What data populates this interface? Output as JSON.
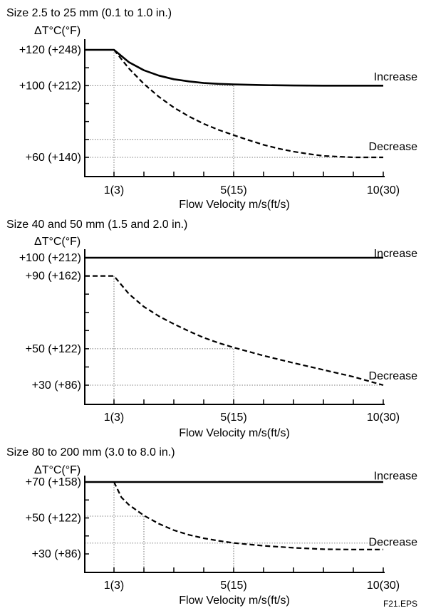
{
  "figure_id": "F21.EPS",
  "chart_data": [
    {
      "type": "line",
      "title": "Size 2.5 to 25 mm (0.1 to 1.0 in.)",
      "ylabel": "ΔT°C(°F)",
      "xlabel": "Flow Velocity m/s(ft/s)",
      "x_ticks": [
        {
          "v": 1,
          "label": "1(3)"
        },
        {
          "v": 5,
          "label": "5(15)"
        },
        {
          "v": 10,
          "label": "10(30)"
        }
      ],
      "y_ticks": [
        {
          "v": 120,
          "label": "+120 (+248)"
        },
        {
          "v": 100,
          "label": "+100 (+212)"
        },
        {
          "v": 60,
          "label": "+60 (+140)"
        }
      ],
      "xlim": [
        0,
        10.5
      ],
      "ylim": [
        50,
        121
      ],
      "series": [
        {
          "name": "Increase",
          "style": "solid",
          "x": [
            0,
            1,
            1.5,
            2,
            2.5,
            3,
            3.5,
            4,
            4.5,
            5,
            6,
            7,
            8,
            9,
            10
          ],
          "y": [
            120,
            120,
            113.1,
            108.6,
            105.6,
            103.6,
            102.4,
            101.5,
            101,
            100.7,
            100.3,
            100.1,
            100,
            100,
            100
          ]
        },
        {
          "name": "Decrease",
          "style": "dashed",
          "x": [
            1,
            1.5,
            2,
            2.5,
            3,
            3.5,
            4,
            4.5,
            5,
            5.5,
            6,
            6.5,
            7,
            7.5,
            8,
            9,
            10
          ],
          "y": [
            120,
            109.6,
            101,
            93.8,
            87.8,
            82.9,
            78.7,
            75.3,
            72.4,
            69.6,
            67,
            64.9,
            63.2,
            61.9,
            60.8,
            60,
            60
          ]
        }
      ],
      "gridlines": [
        {
          "type": "v",
          "x": 1,
          "y": 120
        },
        {
          "type": "v",
          "x": 5,
          "y": 100
        },
        {
          "type": "h",
          "y": 100,
          "x": 5
        },
        {
          "type": "h",
          "y": 60,
          "x": 10
        },
        {
          "type": "h",
          "y": 70,
          "x": 5
        }
      ],
      "annotations": [
        {
          "text": "Increase",
          "x": 10.4,
          "y": 105
        },
        {
          "text": "Decrease",
          "x": 10.4,
          "y": 66
        }
      ]
    },
    {
      "type": "line",
      "title": "Size 40 and 50 mm (1.5 and 2.0 in.)",
      "ylabel": "ΔT°C(°F)",
      "xlabel": "Flow Velocity m/s(ft/s)",
      "x_ticks": [
        {
          "v": 1,
          "label": "1(3)"
        },
        {
          "v": 5,
          "label": "5(15)"
        },
        {
          "v": 10,
          "label": "10(30)"
        }
      ],
      "y_ticks": [
        {
          "v": 100,
          "label": "+100 (+212)"
        },
        {
          "v": 90,
          "label": "+90 (+162)"
        },
        {
          "v": 50,
          "label": "+50 (+122)"
        },
        {
          "v": 30,
          "label": "+30 (+86)"
        }
      ],
      "xlim": [
        0,
        10.5
      ],
      "ylim": [
        24.5,
        101
      ],
      "series": [
        {
          "name": "Increase",
          "style": "solid",
          "x": [
            0,
            10
          ],
          "y": [
            100,
            100
          ]
        },
        {
          "name": "Decrease",
          "style": "dashed",
          "x": [
            0,
            1,
            1.5,
            2,
            2.5,
            3,
            3.5,
            4,
            4.5,
            5,
            6,
            7,
            8,
            9,
            10
          ],
          "y": [
            90,
            90,
            80.1,
            73.1,
            67.9,
            63.6,
            59.7,
            56.1,
            53.2,
            50.7,
            46.2,
            42.2,
            38.4,
            34.6,
            30
          ]
        }
      ],
      "gridlines": [
        {
          "type": "v",
          "x": 1,
          "y": 90
        },
        {
          "type": "v",
          "x": 5,
          "y": 50
        },
        {
          "type": "h",
          "y": 50,
          "x": 5
        },
        {
          "type": "h",
          "y": 30,
          "x": 10
        }
      ],
      "annotations": [
        {
          "text": "Increase",
          "x": 10.4,
          "y": 102.3
        },
        {
          "text": "Decrease",
          "x": 10.4,
          "y": 35
        }
      ]
    },
    {
      "type": "line",
      "title": "Size 80 to 200 mm (3.0 to 8.0 in.)",
      "ylabel": "ΔT°C(°F)",
      "xlabel": "Flow Velocity m/s(ft/s)",
      "x_ticks": [
        {
          "v": 1,
          "label": "1(3)"
        },
        {
          "v": 5,
          "label": "5(15)"
        },
        {
          "v": 10,
          "label": "10(30)"
        }
      ],
      "y_ticks": [
        {
          "v": 70,
          "label": "+70 (+158)"
        },
        {
          "v": 50,
          "label": "+50 (+122)"
        },
        {
          "v": 30,
          "label": "+30 (+86)"
        }
      ],
      "xlim": [
        0,
        10.5
      ],
      "ylim": [
        22.5,
        71
      ],
      "series": [
        {
          "name": "Increase",
          "style": "solid",
          "x": [
            0,
            10
          ],
          "y": [
            70,
            70
          ]
        },
        {
          "name": "Decrease",
          "style": "dashed",
          "x": [
            1,
            1.25,
            1.5,
            2,
            2.5,
            3,
            3.5,
            4,
            4.5,
            5,
            6,
            7,
            8,
            9,
            10
          ],
          "y": [
            70,
            61.4,
            57.3,
            51.4,
            46.8,
            43.2,
            40.6,
            38.7,
            37.3,
            36.1,
            34.5,
            33.4,
            32.6,
            32.4,
            32.4
          ]
        }
      ],
      "gridlines": [
        {
          "type": "v",
          "x": 1,
          "y": 70
        },
        {
          "type": "v",
          "x": 2,
          "y": 51
        },
        {
          "type": "v",
          "x": 5,
          "y": 36
        },
        {
          "type": "h",
          "y": 51,
          "x": 2
        },
        {
          "type": "h",
          "y": 36,
          "x": 10
        }
      ],
      "annotations": [
        {
          "text": "Increase",
          "x": 10.4,
          "y": 73.3
        },
        {
          "text": "Decrease",
          "x": 10.4,
          "y": 36.5
        }
      ]
    }
  ]
}
